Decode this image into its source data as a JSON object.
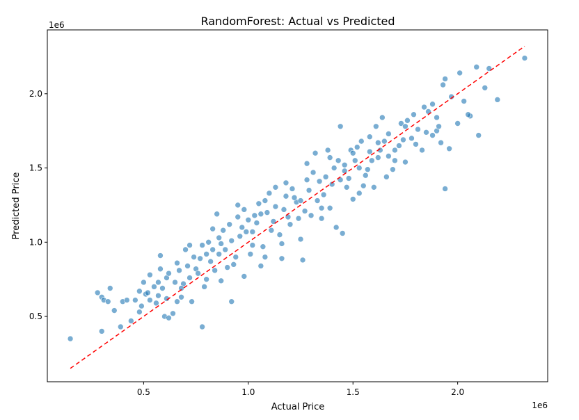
{
  "chart_data": {
    "type": "scatter",
    "title": "RandomForest: Actual vs Predicted",
    "xlabel": "Actual Price",
    "ylabel": "Predicted Price",
    "x_offset_label": "1e6",
    "y_offset_label": "1e6",
    "xlim": [
      0.04,
      2.43
    ],
    "ylim": [
      0.06,
      2.43
    ],
    "x_ticks": [
      0.5,
      1.0,
      1.5,
      2.0
    ],
    "x_tick_labels": [
      "0.5",
      "1.0",
      "1.5",
      "2.0"
    ],
    "y_ticks": [
      0.5,
      1.0,
      1.5,
      2.0
    ],
    "y_tick_labels": [
      "0.5",
      "1.0",
      "1.5",
      "2.0"
    ],
    "grid": false,
    "units_note": "values in millions (axis multiplier 1e6)",
    "series": [
      {
        "kind": "scatter",
        "color": "#1f77b4",
        "alpha": 0.6,
        "points": [
          [
            0.15,
            0.35
          ],
          [
            0.3,
            0.4
          ],
          [
            0.28,
            0.66
          ],
          [
            0.3,
            0.63
          ],
          [
            0.31,
            0.61
          ],
          [
            0.33,
            0.6
          ],
          [
            0.34,
            0.69
          ],
          [
            0.36,
            0.54
          ],
          [
            0.39,
            0.43
          ],
          [
            0.4,
            0.6
          ],
          [
            0.42,
            0.61
          ],
          [
            0.44,
            0.47
          ],
          [
            0.46,
            0.61
          ],
          [
            0.48,
            0.53
          ],
          [
            0.49,
            0.57
          ],
          [
            0.48,
            0.67
          ],
          [
            0.5,
            0.73
          ],
          [
            0.51,
            0.65
          ],
          [
            0.53,
            0.61
          ],
          [
            0.53,
            0.78
          ],
          [
            0.56,
            0.59
          ],
          [
            0.57,
            0.64
          ],
          [
            0.57,
            0.73
          ],
          [
            0.58,
            0.82
          ],
          [
            0.58,
            0.91
          ],
          [
            0.6,
            0.5
          ],
          [
            0.61,
            0.76
          ],
          [
            0.62,
            0.79
          ],
          [
            0.62,
            0.49
          ],
          [
            0.64,
            0.52
          ],
          [
            0.66,
            0.6
          ],
          [
            0.66,
            0.86
          ],
          [
            0.68,
            0.63
          ],
          [
            0.7,
            0.95
          ],
          [
            0.72,
            0.76
          ],
          [
            0.73,
            0.6
          ],
          [
            0.75,
            0.82
          ],
          [
            0.78,
            0.98
          ],
          [
            0.78,
            0.43
          ],
          [
            0.8,
            0.75
          ],
          [
            0.82,
            0.87
          ],
          [
            0.83,
            0.95
          ],
          [
            0.85,
            1.19
          ],
          [
            0.86,
            1.03
          ],
          [
            0.88,
            1.08
          ],
          [
            0.9,
            0.83
          ],
          [
            0.92,
            0.6
          ],
          [
            0.93,
            0.85
          ],
          [
            0.95,
            1.25
          ],
          [
            0.98,
            1.22
          ],
          [
            1.0,
            1.15
          ],
          [
            1.02,
            0.98
          ],
          [
            1.04,
            1.13
          ],
          [
            1.05,
            1.26
          ],
          [
            1.08,
            0.9
          ],
          [
            1.1,
            1.33
          ],
          [
            1.13,
            1.24
          ],
          [
            1.15,
            1.05
          ],
          [
            1.16,
            0.89
          ],
          [
            1.18,
            1.4
          ],
          [
            1.2,
            1.12
          ],
          [
            1.23,
            1.27
          ],
          [
            1.25,
            1.02
          ],
          [
            1.26,
            0.88
          ],
          [
            1.28,
            1.53
          ],
          [
            1.3,
            1.18
          ],
          [
            1.32,
            1.6
          ],
          [
            1.35,
            1.23
          ],
          [
            1.38,
            1.62
          ],
          [
            1.4,
            1.39
          ],
          [
            1.42,
            1.1
          ],
          [
            1.44,
            1.78
          ],
          [
            1.45,
            1.06
          ],
          [
            1.46,
            1.48
          ],
          [
            1.5,
            1.29
          ],
          [
            1.52,
            1.64
          ],
          [
            1.53,
            1.5
          ],
          [
            1.55,
            1.38
          ],
          [
            1.58,
            1.71
          ],
          [
            1.6,
            1.37
          ],
          [
            1.62,
            1.57
          ],
          [
            1.64,
            1.84
          ],
          [
            1.66,
            1.44
          ],
          [
            1.7,
            1.62
          ],
          [
            1.73,
            1.8
          ],
          [
            1.75,
            1.54
          ],
          [
            1.78,
            1.7
          ],
          [
            1.8,
            1.66
          ],
          [
            1.83,
            1.62
          ],
          [
            1.85,
            1.74
          ],
          [
            1.88,
            1.93
          ],
          [
            1.9,
            1.84
          ],
          [
            1.92,
            1.67
          ],
          [
            1.94,
            1.36
          ],
          [
            1.97,
            1.98
          ],
          [
            2.0,
            1.8
          ],
          [
            2.03,
            1.95
          ],
          [
            2.06,
            1.85
          ],
          [
            2.1,
            1.72
          ],
          [
            2.13,
            2.04
          ],
          [
            2.15,
            2.17
          ],
          [
            2.19,
            1.96
          ],
          [
            2.01,
            2.14
          ],
          [
            2.09,
            2.18
          ],
          [
            2.32,
            2.24
          ],
          [
            1.94,
            2.1
          ],
          [
            1.96,
            1.63
          ],
          [
            1.9,
            1.75
          ],
          [
            1.7,
            1.55
          ],
          [
            1.56,
            1.45
          ],
          [
            1.61,
            1.78
          ],
          [
            1.49,
            1.62
          ],
          [
            1.41,
            1.5
          ],
          [
            1.36,
            1.32
          ],
          [
            1.27,
            1.21
          ],
          [
            1.19,
            1.17
          ],
          [
            1.13,
            1.37
          ],
          [
            1.07,
            0.97
          ],
          [
            1.03,
            1.18
          ],
          [
            0.96,
            1.04
          ],
          [
            0.91,
            1.12
          ],
          [
            0.86,
            0.92
          ],
          [
            0.81,
            1.0
          ],
          [
            0.76,
            0.79
          ],
          [
            0.71,
            0.84
          ],
          [
            0.69,
            0.72
          ],
          [
            0.65,
            0.73
          ],
          [
            0.74,
            0.9
          ],
          [
            0.79,
            0.7
          ],
          [
            0.84,
            0.81
          ],
          [
            0.89,
            0.95
          ],
          [
            0.94,
            0.9
          ],
          [
            0.99,
            1.07
          ],
          [
            1.01,
            0.92
          ],
          [
            1.06,
            1.19
          ],
          [
            1.11,
            1.08
          ],
          [
            1.17,
            1.22
          ],
          [
            1.21,
            1.36
          ],
          [
            1.24,
            1.16
          ],
          [
            1.29,
            1.35
          ],
          [
            1.33,
            1.28
          ],
          [
            1.37,
            1.44
          ],
          [
            1.39,
            1.23
          ],
          [
            1.43,
            1.55
          ],
          [
            1.47,
            1.37
          ],
          [
            1.51,
            1.55
          ],
          [
            1.54,
            1.68
          ],
          [
            1.57,
            1.49
          ],
          [
            1.63,
            1.62
          ],
          [
            1.67,
            1.73
          ],
          [
            1.69,
            1.49
          ],
          [
            1.72,
            1.65
          ],
          [
            1.76,
            1.82
          ],
          [
            1.81,
            1.76
          ],
          [
            1.86,
            1.88
          ],
          [
            1.91,
            1.78
          ],
          [
            1.84,
            1.91
          ],
          [
            1.67,
            1.58
          ],
          [
            1.59,
            1.55
          ],
          [
            1.48,
            1.43
          ],
          [
            1.34,
            1.41
          ],
          [
            1.22,
            1.3
          ],
          [
            1.09,
            1.2
          ],
          [
            0.97,
            1.1
          ],
          [
            0.87,
            0.99
          ],
          [
            0.77,
            0.89
          ],
          [
            0.67,
            0.81
          ],
          [
            0.59,
            0.69
          ],
          [
            0.55,
            0.7
          ],
          [
            0.52,
            0.66
          ],
          [
            0.61,
            0.62
          ],
          [
            0.68,
            0.69
          ],
          [
            0.72,
            0.98
          ],
          [
            0.8,
            0.92
          ],
          [
            0.92,
            1.01
          ],
          [
            1.02,
            1.07
          ],
          [
            1.12,
            1.14
          ],
          [
            1.25,
            1.28
          ],
          [
            1.31,
            1.47
          ],
          [
            1.46,
            1.52
          ],
          [
            1.58,
            1.61
          ],
          [
            1.74,
            1.69
          ],
          [
            1.88,
            1.72
          ],
          [
            2.05,
            1.86
          ],
          [
            1.93,
            2.06
          ],
          [
            1.79,
            1.86
          ],
          [
            1.65,
            1.68
          ],
          [
            1.53,
            1.33
          ],
          [
            1.44,
            1.42
          ],
          [
            1.35,
            1.16
          ],
          [
            1.16,
            0.99
          ],
          [
            1.06,
            0.84
          ],
          [
            0.98,
            0.77
          ],
          [
            0.87,
            0.74
          ],
          [
            0.83,
            1.09
          ],
          [
            0.95,
            1.17
          ],
          [
            1.08,
            1.28
          ],
          [
            1.18,
            1.31
          ],
          [
            1.28,
            1.42
          ],
          [
            1.39,
            1.57
          ],
          [
            1.5,
            1.6
          ],
          [
            1.62,
            1.67
          ],
          [
            1.75,
            1.78
          ]
        ]
      },
      {
        "kind": "line",
        "name": "",
        "style": "dashed",
        "color": "#ff0000",
        "points": [
          [
            0.15,
            0.15
          ],
          [
            2.32,
            2.32
          ]
        ]
      }
    ]
  }
}
